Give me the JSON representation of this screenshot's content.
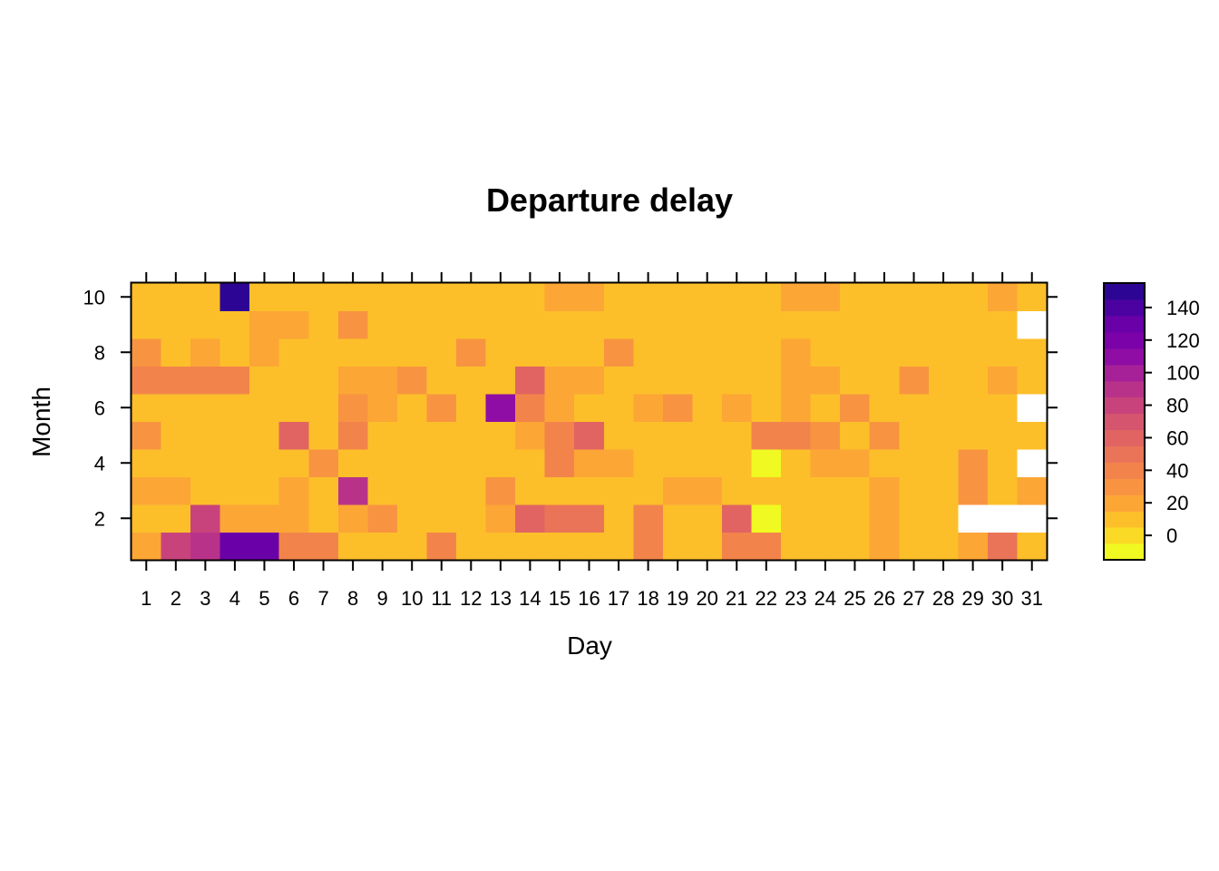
{
  "chart_data": {
    "type": "heatmap",
    "title": "Departure delay",
    "xlabel": "Day",
    "ylabel": "Month",
    "x": [
      1,
      2,
      3,
      4,
      5,
      6,
      7,
      8,
      9,
      10,
      11,
      12,
      13,
      14,
      15,
      16,
      17,
      18,
      19,
      20,
      21,
      22,
      23,
      24,
      25,
      26,
      27,
      28,
      29,
      30,
      31
    ],
    "y": [
      1,
      2,
      3,
      4,
      5,
      6,
      7,
      8,
      9,
      10
    ],
    "x_ticks": [
      1,
      2,
      3,
      4,
      5,
      6,
      7,
      8,
      9,
      10,
      11,
      12,
      13,
      14,
      15,
      16,
      17,
      18,
      19,
      20,
      21,
      22,
      23,
      24,
      25,
      26,
      27,
      28,
      29,
      30,
      31
    ],
    "y_ticks": [
      2,
      4,
      6,
      8,
      10
    ],
    "xlim": [
      0.5,
      31.5
    ],
    "ylim": [
      0.5,
      10.5
    ],
    "values": [
      [
        22,
        75,
        90,
        125,
        125,
        38,
        38,
        12,
        12,
        12,
        38,
        8,
        12,
        5,
        12,
        12,
        12,
        38,
        5,
        5,
        38,
        38,
        12,
        5,
        5,
        22,
        5,
        5,
        22,
        45,
        5
      ],
      [
        5,
        12,
        75,
        22,
        22,
        22,
        12,
        22,
        30,
        5,
        5,
        5,
        22,
        55,
        45,
        45,
        5,
        38,
        12,
        5,
        55,
        -10,
        5,
        5,
        5,
        22,
        12,
        5,
        null,
        null,
        null
      ],
      [
        22,
        22,
        5,
        5,
        5,
        22,
        12,
        85,
        12,
        12,
        5,
        5,
        30,
        12,
        5,
        12,
        12,
        12,
        22,
        22,
        5,
        5,
        5,
        5,
        5,
        22,
        5,
        12,
        30,
        12,
        22
      ],
      [
        5,
        5,
        5,
        12,
        5,
        5,
        30,
        5,
        12,
        12,
        5,
        12,
        5,
        5,
        38,
        22,
        22,
        5,
        12,
        5,
        5,
        -10,
        12,
        22,
        22,
        12,
        5,
        5,
        30,
        5,
        null
      ],
      [
        30,
        5,
        5,
        12,
        12,
        55,
        5,
        38,
        12,
        12,
        5,
        5,
        5,
        22,
        38,
        55,
        5,
        12,
        5,
        5,
        5,
        38,
        38,
        30,
        5,
        30,
        12,
        12,
        12,
        12,
        5
      ],
      [
        5,
        12,
        12,
        5,
        12,
        12,
        12,
        30,
        22,
        12,
        30,
        12,
        105,
        38,
        22,
        5,
        12,
        22,
        30,
        12,
        22,
        12,
        22,
        12,
        30,
        12,
        12,
        12,
        5,
        5,
        null
      ],
      [
        38,
        38,
        38,
        38,
        5,
        12,
        12,
        22,
        22,
        30,
        5,
        12,
        5,
        55,
        22,
        22,
        12,
        5,
        5,
        5,
        12,
        12,
        22,
        22,
        5,
        12,
        30,
        12,
        5,
        22,
        12
      ],
      [
        30,
        12,
        22,
        5,
        22,
        12,
        5,
        5,
        5,
        12,
        5,
        30,
        12,
        12,
        12,
        5,
        30,
        12,
        5,
        12,
        12,
        5,
        22,
        5,
        12,
        5,
        5,
        5,
        5,
        12,
        5
      ],
      [
        5,
        5,
        5,
        5,
        22,
        22,
        5,
        30,
        5,
        5,
        12,
        5,
        12,
        5,
        5,
        5,
        5,
        5,
        12,
        5,
        5,
        5,
        5,
        5,
        5,
        5,
        5,
        5,
        5,
        12,
        null
      ],
      [
        5,
        5,
        12,
        150,
        12,
        5,
        12,
        5,
        5,
        12,
        5,
        5,
        12,
        5,
        22,
        22,
        5,
        5,
        5,
        12,
        5,
        5,
        22,
        22,
        5,
        5,
        5,
        5,
        5,
        22,
        5
      ]
    ],
    "colorbar": {
      "ticks": [
        0,
        20,
        40,
        60,
        80,
        100,
        120,
        140
      ],
      "breaks": [
        -15,
        -5,
        5,
        15,
        25,
        35,
        45,
        55,
        65,
        75,
        85,
        95,
        105,
        115,
        125,
        135,
        145,
        155
      ],
      "colors": [
        "#f0f921",
        "#fada24",
        "#fcbf2a",
        "#fca636",
        "#f89441",
        "#f2844b",
        "#ea7457",
        "#e16462",
        "#d5546e",
        "#c8437b",
        "#b93289",
        "#a62098",
        "#8f0da4",
        "#7a02a8",
        "#6a00a8",
        "#4c02a1",
        "#2c0594",
        "#0d0887"
      ]
    },
    "missing_color": "#ffffff",
    "grid": false,
    "legend": "right"
  }
}
